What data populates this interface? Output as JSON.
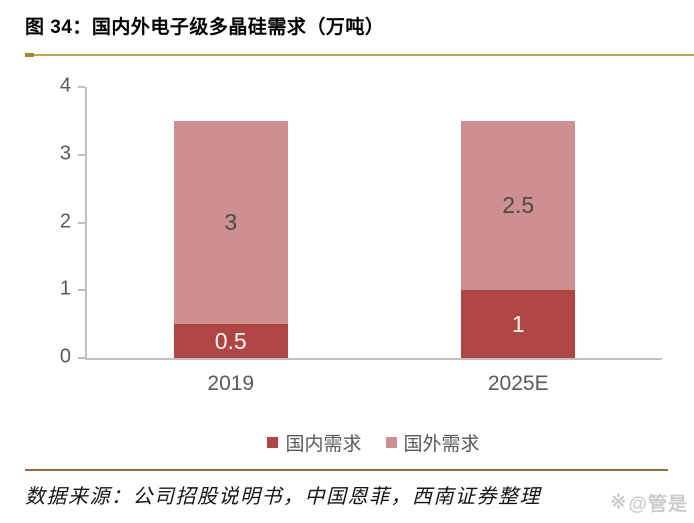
{
  "figure": {
    "title": "图 34：国内外电子级多晶硅需求（万吨）",
    "source": "数据来源：公司招股说明书，中国恩菲，西南证券整理",
    "watermark": "@管是",
    "watermark_icon_glyph": "※"
  },
  "colors": {
    "domestic_red": "#B04644",
    "foreign_pink": "#CD8F8F",
    "axis_gray": "#BFBFBF",
    "text_gray": "#595959",
    "gold_rule": "#C9A34B",
    "gold_rule_cap": "#A9822E",
    "brown_rule": "#8C6E3E",
    "watermark_gray": "#CCCCCC"
  },
  "chart_data": {
    "type": "bar",
    "stacked": true,
    "title": "国内外电子级多晶硅需求（万吨）",
    "categories": [
      "2019",
      "2025E"
    ],
    "series": [
      {
        "name": "国内需求",
        "values": [
          0.5,
          1
        ],
        "color": "#B04644",
        "label_color": "#FDF5F0"
      },
      {
        "name": "国外需求",
        "values": [
          3,
          2.5
        ],
        "color": "#CD8F8F",
        "label_color": "#4E4A4A"
      }
    ],
    "ylabel": "",
    "xlabel": "",
    "ylim": [
      0,
      4
    ],
    "yticks": [
      0,
      1,
      2,
      3,
      4
    ],
    "grid": false,
    "legend_position": "bottom"
  }
}
